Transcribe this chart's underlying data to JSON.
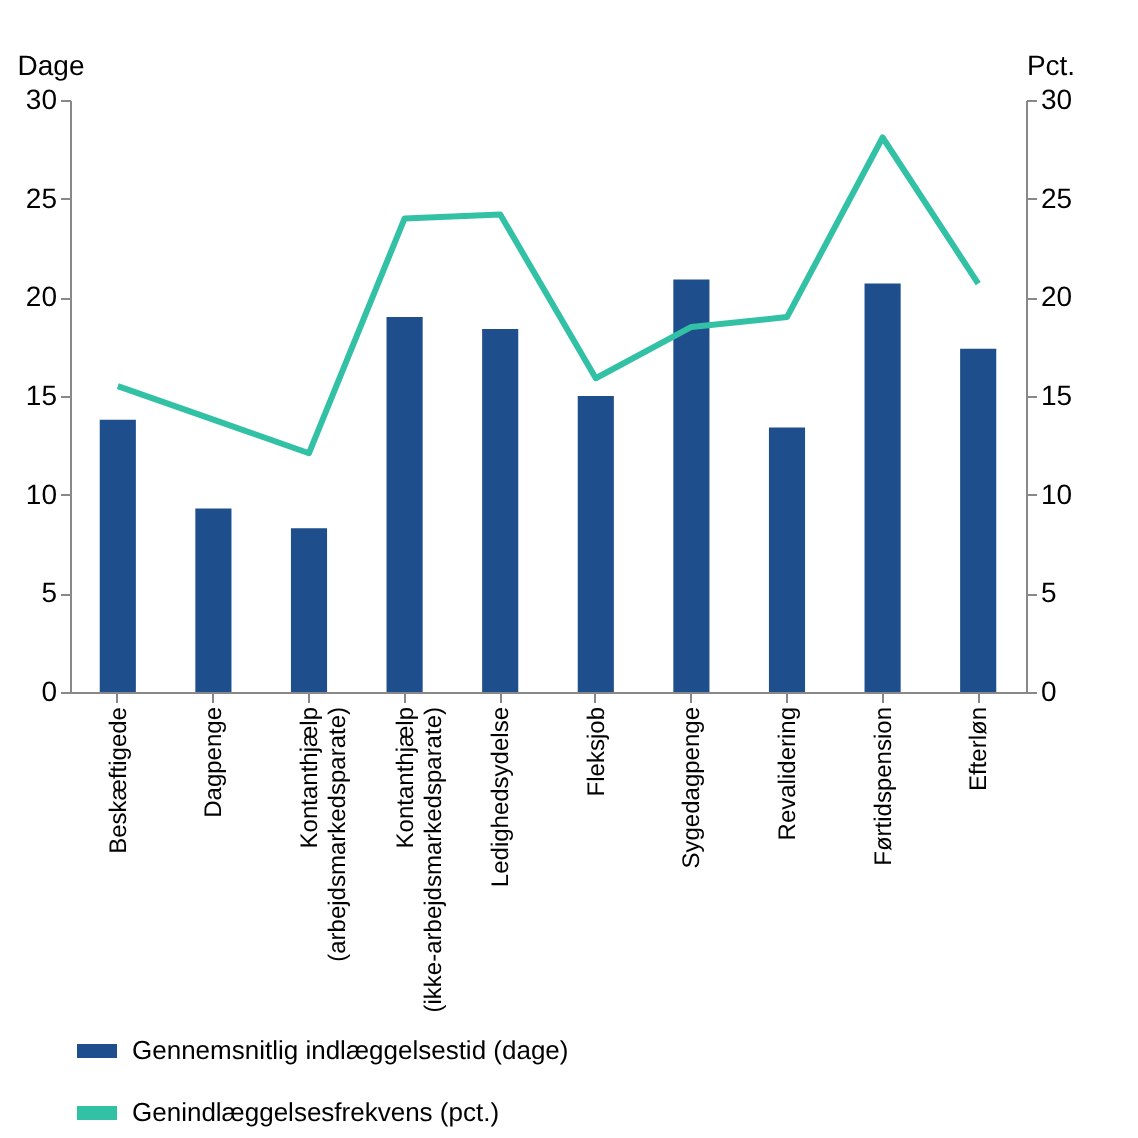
{
  "chart_data": {
    "type": "bar",
    "ylabel": "Dage",
    "y2label": "Pct.",
    "categories": [
      "Beskæftigede",
      "Dagpenge",
      "Kontanthjælp (arbejdsmarkedsparate)",
      "Kontanthjælp (ikke-arbejdsmarkedsparate)",
      "Ledighedsydelse",
      "Fleksjob",
      "Sygedagpenge",
      "Revalidering",
      "Førtidspension",
      "Efterløn"
    ],
    "series": [
      {
        "name": "Gennemsnitlig indlæggelsestid (dage)",
        "color": "#1f4e8c",
        "values": [
          13.8,
          9.3,
          8.3,
          19.0,
          18.4,
          15.0,
          20.9,
          13.4,
          20.7,
          17.4
        ]
      },
      {
        "name": "Genindlæggelsesfrekvens (pct.)",
        "type": "line",
        "axis": "y2",
        "color": "#33c1a5",
        "values": [
          15.5,
          13.8,
          12.1,
          24.0,
          24.2,
          15.9,
          18.5,
          19.0,
          28.1,
          20.7
        ]
      }
    ],
    "ylim": [
      0,
      30
    ],
    "yticks": [
      0,
      5,
      10,
      15,
      20,
      25,
      30
    ],
    "y2lim": [
      0,
      30
    ],
    "y2ticks": [
      0,
      5,
      10,
      15,
      20,
      25,
      30
    ],
    "legend": "bottom",
    "grid": false,
    "marker": "none"
  }
}
